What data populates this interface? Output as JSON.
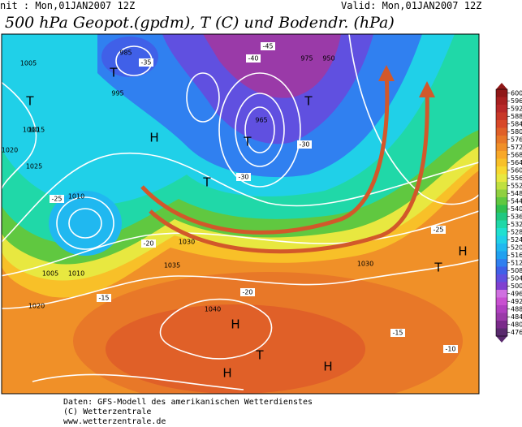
{
  "header": {
    "init": "nit : Mon,01JAN2007 12Z",
    "valid": "Valid: Mon,01JAN2007 12Z",
    "title": "500 hPa Geopot.(gpdm), T (C) und Bodendr. (hPa)"
  },
  "colorbar": {
    "levels": [
      600,
      596,
      592,
      588,
      584,
      580,
      576,
      572,
      568,
      564,
      560,
      556,
      552,
      548,
      544,
      540,
      536,
      532,
      528,
      524,
      520,
      516,
      512,
      508,
      504,
      500,
      496,
      492,
      488,
      484,
      480,
      476
    ],
    "colors": [
      "#901818",
      "#a82020",
      "#b82828",
      "#c83828",
      "#d84828",
      "#e06028",
      "#e87828",
      "#f09028",
      "#f8a828",
      "#f8c028",
      "#f8d830",
      "#e8e840",
      "#c0e040",
      "#90d040",
      "#60c840",
      "#30c050",
      "#20c880",
      "#20d8a8",
      "#20e0d0",
      "#20d0e8",
      "#20b8f0",
      "#20a0f0",
      "#3080f0",
      "#4060e8",
      "#6050e0",
      "#8040d0",
      "#d070e0",
      "#c850d0",
      "#b040c0",
      "#9a3aa8",
      "#7a2a8a",
      "#5a2a6e"
    ]
  },
  "map": {
    "pressure_labels": [
      "985",
      "1005",
      "1000",
      "1015",
      "1020",
      "1025",
      "1010",
      "1035",
      "1040",
      "1030",
      "1020",
      "995",
      "965",
      "975",
      "950",
      "1010",
      "1005",
      "1030"
    ],
    "temperature_labels": [
      "-35",
      "-30",
      "-25",
      "-20",
      "-15",
      "-10",
      "-40",
      "-45",
      "-20",
      "-15",
      "-25",
      "-30"
    ],
    "centers": [
      "T",
      "H",
      "T",
      "H",
      "H",
      "T",
      "H",
      "T",
      "T",
      "H",
      "T",
      "T"
    ]
  },
  "footer": {
    "lines": [
      "Daten: GFS-Modell des amerikanischen Wetterdienstes",
      "(C) Wetterzentrale",
      "www.wetterzentrale.de"
    ]
  }
}
